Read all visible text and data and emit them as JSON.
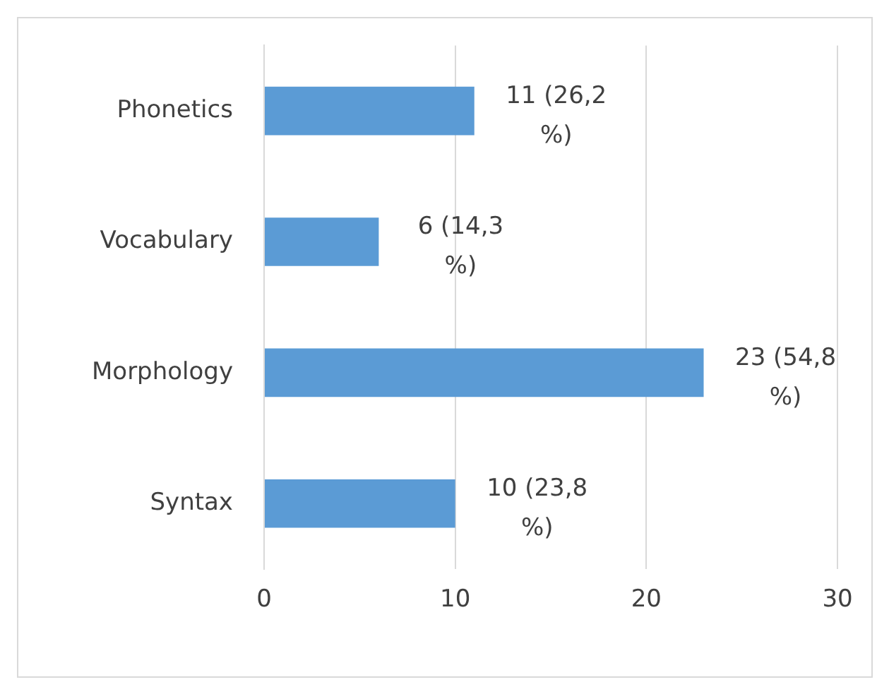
{
  "chart_data": {
    "type": "bar",
    "orientation": "horizontal",
    "categories": [
      "Phonetics",
      "Vocabulary",
      "Morphology",
      "Syntax"
    ],
    "values": [
      11,
      6,
      23,
      10
    ],
    "value_labels": [
      "11 (26,2 %)",
      "6 (14,3 %)",
      "23 (54,8 %)",
      "10 (23,8 %)"
    ],
    "color": "#5b9bd5",
    "xlim": [
      0,
      30
    ],
    "xticks": [
      0,
      10,
      20,
      30
    ],
    "grid": "x",
    "legend": false
  }
}
